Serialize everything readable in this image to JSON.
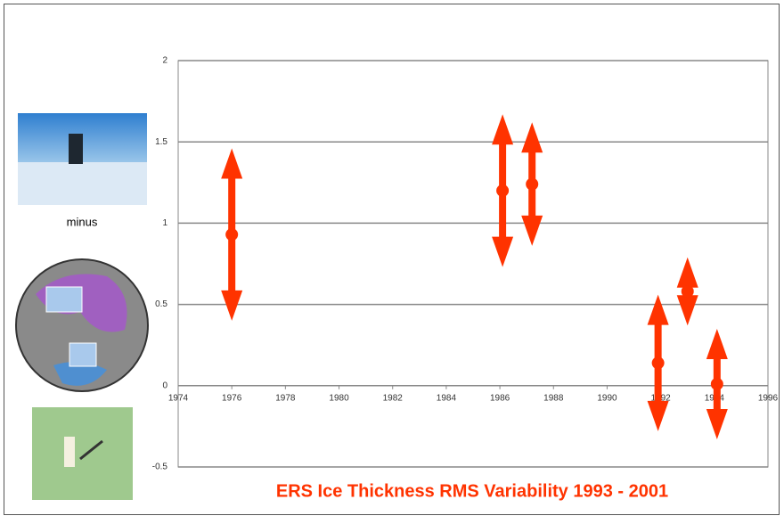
{
  "chart_data": {
    "type": "errorbar",
    "title": "ERS Ice Thickness RMS Variability 1993 - 2001",
    "annotations": [
      "minus"
    ],
    "x": [
      1976,
      1986.1,
      1987.2,
      1991.9,
      1993,
      1994.1
    ],
    "series": [
      {
        "color": "#ff3300",
        "values": [
          0.93,
          1.2,
          1.24,
          0.14,
          0.58,
          0.01
        ],
        "errors": [
          0.53,
          0.47,
          0.38,
          0.42,
          0.21,
          0.34
        ]
      }
    ],
    "xlim": [
      1974,
      1996
    ],
    "xticks": [
      1974,
      1976,
      1978,
      1980,
      1982,
      1984,
      1986,
      1988,
      1990,
      1992,
      1994,
      1996
    ],
    "ylim": [
      -0.5,
      2
    ],
    "yticks": [
      -0.5,
      0,
      0.5,
      1,
      1.5,
      2
    ],
    "grid": true
  }
}
